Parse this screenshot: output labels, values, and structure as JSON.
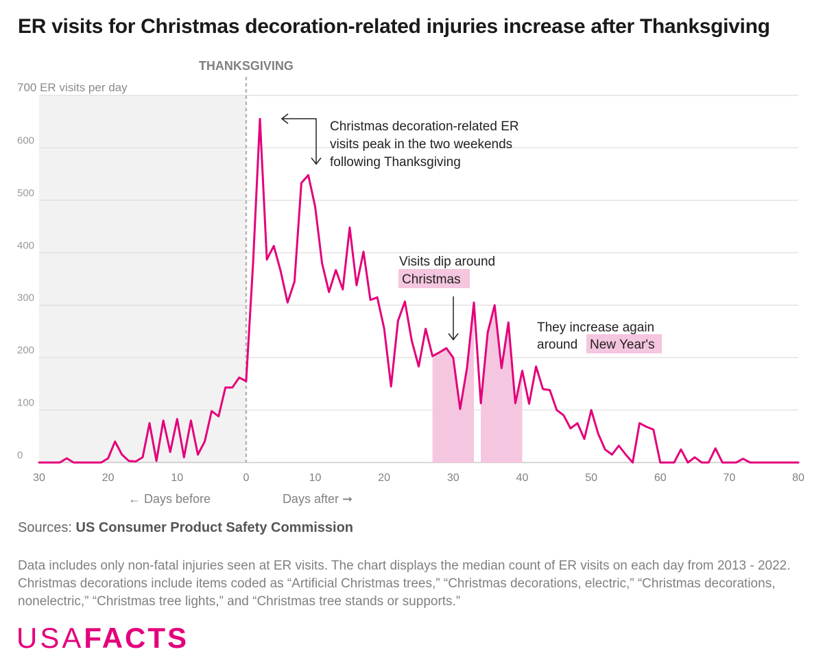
{
  "title": "ER visits for Christmas decoration-related injuries increase after Thanksgiving",
  "chart_data": {
    "type": "line",
    "ylabel": "700 ER visits per day",
    "ylim": [
      0,
      700
    ],
    "xlim": [
      -30,
      80
    ],
    "y_ticks": [
      0,
      100,
      200,
      300,
      400,
      500,
      600
    ],
    "x_ticks": [
      -30,
      -20,
      -10,
      0,
      10,
      20,
      30,
      40,
      50,
      60,
      70,
      80
    ],
    "x_tick_labels": [
      "30",
      "20",
      "10",
      "0",
      "10",
      "20",
      "30",
      "40",
      "50",
      "60",
      "70",
      "80"
    ],
    "grid": true,
    "thanksgiving_label": "THANKSGIVING",
    "days_before_label": "← Days before",
    "days_after_label": "Days after ➞",
    "line_color": "#e3007b",
    "highlight_color": "#f5c6df",
    "shade_color": "#f2f2f2",
    "highlight_ranges": [
      [
        27,
        33
      ],
      [
        34,
        40
      ]
    ],
    "series": [
      {
        "x": [
          -30,
          -29,
          -28,
          -27,
          -26,
          -25,
          -24,
          -23,
          -22,
          -21,
          -20,
          -19,
          -18,
          -17,
          -16,
          -15,
          -14,
          -13,
          -12,
          -11,
          -10,
          -9,
          -8,
          -7,
          -6,
          -5,
          -4,
          -3,
          -2,
          -1,
          0,
          1,
          2,
          3,
          4,
          5,
          6,
          7,
          8,
          9,
          10,
          11,
          12,
          13,
          14,
          15,
          16,
          17,
          18,
          19,
          20,
          21,
          22,
          23,
          24,
          25,
          26,
          27,
          28,
          29,
          30,
          31,
          32,
          33,
          34,
          35,
          36,
          37,
          38,
          39,
          40,
          41,
          42,
          43,
          44,
          45,
          46,
          47,
          48,
          49,
          50,
          51,
          52,
          53,
          54,
          55,
          56,
          57,
          58,
          59,
          60,
          61,
          62,
          63,
          64,
          65,
          66,
          67,
          68,
          69,
          70,
          71,
          72,
          73,
          74,
          75,
          76,
          77,
          78,
          79,
          80
        ],
        "y": [
          0,
          0,
          0,
          0,
          8,
          0,
          0,
          0,
          0,
          0,
          8,
          40,
          15,
          3,
          2,
          10,
          75,
          3,
          80,
          20,
          83,
          10,
          80,
          15,
          40,
          98,
          88,
          143,
          143,
          162,
          155,
          380,
          655,
          387,
          413,
          365,
          305,
          345,
          533,
          548,
          488,
          380,
          325,
          367,
          330,
          448,
          338,
          402,
          310,
          315,
          255,
          145,
          270,
          307,
          232,
          183,
          255,
          203,
          210,
          218,
          200,
          102,
          180,
          305,
          113,
          248,
          300,
          180,
          267,
          113,
          175,
          112,
          183,
          140,
          138,
          100,
          90,
          65,
          75,
          45,
          100,
          55,
          25,
          15,
          32,
          15,
          0,
          75,
          68,
          63,
          0,
          0,
          0,
          25,
          0,
          10,
          0,
          0,
          27,
          0,
          0,
          0,
          7,
          0,
          0,
          0,
          0,
          0,
          0,
          0,
          0
        ]
      }
    ],
    "annotations": {
      "peak": [
        "Christmas decoration-related ER",
        "visits peak in the two weekends",
        "following Thanksgiving"
      ],
      "dip_line1": "Visits dip around",
      "dip_line2": "Christmas",
      "increase_line1": "They increase again",
      "increase_line2_prefix": "around",
      "increase_line2_highlight": "New Year's"
    }
  },
  "sources_label": "Sources:",
  "sources_value": "US Consumer Product Safety Commission",
  "note": "Data includes only non-fatal injuries seen at ER visits. The chart displays the median count of ER visits on each day from 2013 - 2022.  Christmas decorations include items coded as “Artificial Christmas trees,” “Christmas decorations, electric,” “Christmas decorations, nonelectric,” “Christmas tree lights,” and “Christmas tree stands or supports.”",
  "logo_usa": "USA",
  "logo_facts": "FACTS"
}
